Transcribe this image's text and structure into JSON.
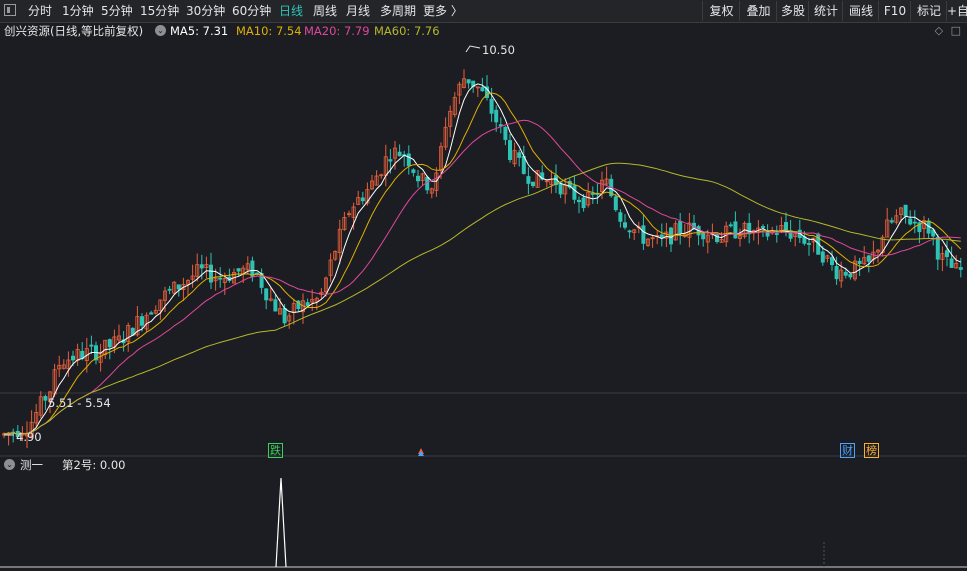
{
  "toolbar": {
    "periods": [
      "分时",
      "1分钟",
      "5分钟",
      "15分钟",
      "30分钟",
      "60分钟",
      "日线",
      "周线",
      "月线",
      "多周期",
      "更多 〉"
    ],
    "active_period": "日线",
    "buttons": [
      "复权",
      "叠加",
      "多股",
      "统计",
      "画线",
      "F10",
      "标记",
      "+自"
    ]
  },
  "header": {
    "title": "创兴资源(日线,等比前复权)",
    "ma5": "MA5: 7.31",
    "ma10": "MA10: 7.54",
    "ma20": "MA20: 7.79",
    "ma60": "MA60: 7.76"
  },
  "colors": {
    "up": "#e8603c",
    "down": "#2ec2b4",
    "ma5": "#ffffff",
    "ma10": "#e0b000",
    "ma20": "#e0489a",
    "ma60": "#b5b82a",
    "active": "#2fc3b8"
  },
  "price_labels": {
    "high": "10.50",
    "range": "5.51 - 5.54",
    "low": "4.90"
  },
  "markers": {
    "die": "跌",
    "cai": "财",
    "bang": "榜"
  },
  "indicator": {
    "name": "测一",
    "value_label": "第2号: 0.00"
  },
  "chart_data": {
    "type": "candlestick",
    "price_high": 10.5,
    "price_low": 4.9,
    "ma_current": {
      "MA5": 7.31,
      "MA10": 7.54,
      "MA20": 7.79,
      "MA60": 7.76
    },
    "indicator_series_name": "第2号",
    "indicator_value": 0.0
  }
}
